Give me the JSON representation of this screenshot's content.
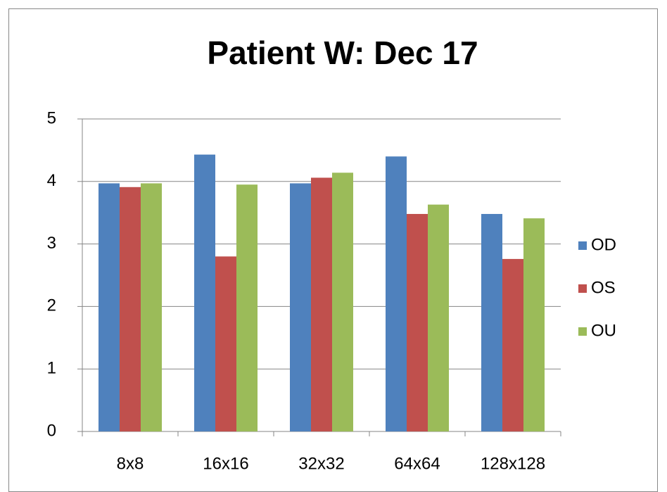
{
  "chart_data": {
    "type": "bar",
    "title": "Patient W: Dec 17",
    "categories": [
      "8x8",
      "16x16",
      "32x32",
      "64x64",
      "128x128"
    ],
    "series": [
      {
        "name": "OD",
        "color": "#4f81bd",
        "values": [
          3.97,
          4.43,
          3.97,
          4.4,
          3.48
        ]
      },
      {
        "name": "OS",
        "color": "#c0504d",
        "values": [
          3.91,
          2.8,
          4.06,
          3.48,
          2.76
        ]
      },
      {
        "name": "OU",
        "color": "#9bbb59",
        "values": [
          3.97,
          3.95,
          4.14,
          3.63,
          3.41
        ]
      }
    ],
    "ylim": [
      0,
      5
    ],
    "yticks": [
      0,
      1,
      2,
      3,
      4,
      5
    ],
    "grid": true,
    "legend": "right"
  }
}
